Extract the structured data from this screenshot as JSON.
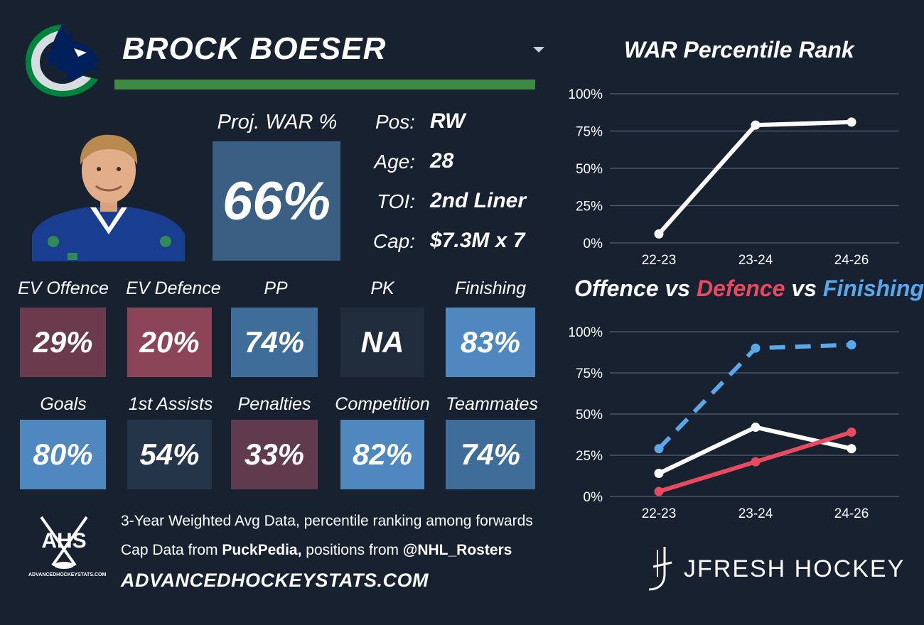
{
  "player": {
    "name": "BROCK BOESER",
    "proj_label": "Proj. WAR %",
    "proj_value": "66%",
    "proj_color": "#3a5f83",
    "name_bar_color": "#3e8a45",
    "info": [
      {
        "label": "Pos:",
        "value": "RW"
      },
      {
        "label": "Age:",
        "value": "28"
      },
      {
        "label": "TOI:",
        "value": "2nd Liner"
      },
      {
        "label": "Cap:",
        "value": "$7.3M x 7"
      }
    ]
  },
  "tiles": [
    {
      "label": "EV Offence",
      "value": "29%",
      "color": "#6b3a4d"
    },
    {
      "label": "EV Defence",
      "value": "20%",
      "color": "#8c4458"
    },
    {
      "label": "PP",
      "value": "74%",
      "color": "#3f6d99"
    },
    {
      "label": "PK",
      "value": "NA",
      "color": "#1f2c3b"
    },
    {
      "label": "Finishing",
      "value": "83%",
      "color": "#4e88bf"
    },
    {
      "label": "Goals",
      "value": "80%",
      "color": "#4e88bf"
    },
    {
      "label": "1st Assists",
      "value": "54%",
      "color": "#243449"
    },
    {
      "label": "Penalties",
      "value": "33%",
      "color": "#603a4d"
    },
    {
      "label": "Competition",
      "value": "82%",
      "color": "#4e88bf"
    },
    {
      "label": "Teammates",
      "value": "74%",
      "color": "#3f6d99"
    }
  ],
  "footer": {
    "line1": "3-Year Weighted Avg Data, percentile ranking among forwards",
    "line2_pre": "Cap Data from ",
    "line2_bold1": "PuckPedia,",
    "line2_mid": " positions from ",
    "line2_bold2": "@NHL_Rosters",
    "url": "ADVANCEDHOCKEYSTATS.COM",
    "ahs": "AHS",
    "ahs_sub": "ADVANCEDHOCKEYSTATS.COM",
    "brand": "JFRESH HOCKEY"
  },
  "chart_data": [
    {
      "type": "line",
      "title": "WAR Percentile Rank",
      "x": [
        "22-23",
        "23-24",
        "24-26"
      ],
      "y_ticks": [
        "100%",
        "75%",
        "50%",
        "25%",
        "0%"
      ],
      "ylim": [
        0,
        100
      ],
      "grid": true,
      "series": [
        {
          "values": [
            6,
            79,
            81
          ],
          "color": "#ffffff",
          "style": "solid"
        }
      ]
    },
    {
      "type": "line",
      "title_parts": [
        {
          "text": "Offence vs ",
          "color": "#ffffff"
        },
        {
          "text": "Defence",
          "color": "#e84a5f"
        },
        {
          "text": " vs ",
          "color": "#ffffff"
        },
        {
          "text": "Finishing",
          "color": "#5aa7ea"
        }
      ],
      "x": [
        "22-23",
        "23-24",
        "24-26"
      ],
      "y_ticks": [
        "100%",
        "75%",
        "50%",
        "25%",
        "0%"
      ],
      "ylim": [
        0,
        100
      ],
      "grid": true,
      "series": [
        {
          "name": "Offence",
          "values": [
            14,
            42,
            29
          ],
          "color": "#ffffff",
          "style": "solid"
        },
        {
          "name": "Defence",
          "values": [
            3,
            21,
            39
          ],
          "color": "#e84a5f",
          "style": "solid"
        },
        {
          "name": "Finishing",
          "values": [
            29,
            90,
            92
          ],
          "color": "#5aa7ea",
          "style": "dashed"
        }
      ]
    }
  ]
}
